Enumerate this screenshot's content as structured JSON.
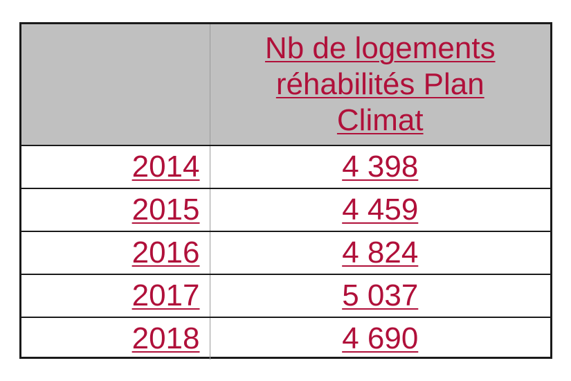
{
  "table": {
    "corner": " ",
    "header": "Nb de logements réhabilités Plan Climat",
    "rows": [
      {
        "year": "2014",
        "value": "4 398"
      },
      {
        "year": "2015",
        "value": "4 459"
      },
      {
        "year": "2016",
        "value": "4 824"
      },
      {
        "year": "2017",
        "value": "5 037"
      },
      {
        "year": "2018",
        "value": "4 690"
      }
    ]
  },
  "colors": {
    "link": "#b0103a",
    "header_bg": "#c0c0c0",
    "border": "#1a1a1a"
  }
}
